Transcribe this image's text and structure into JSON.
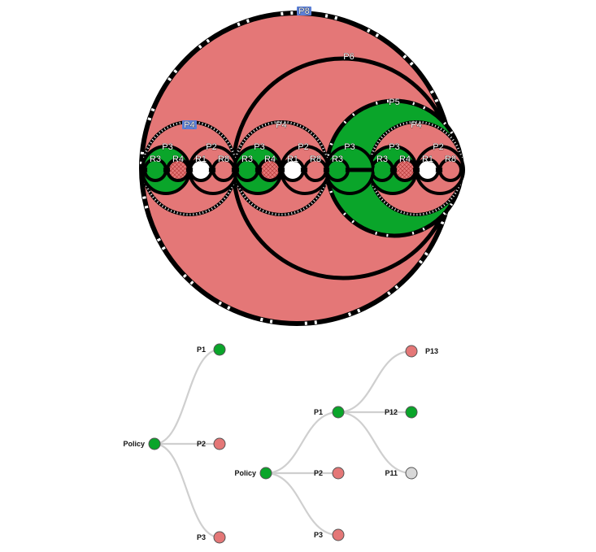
{
  "colors": {
    "green": "#0aa52a",
    "red": "#e47777",
    "white": "#ffffff",
    "gray": "#d8d8d8",
    "outline": "#000000",
    "highlight": "#5b7fd6",
    "edge": "#cfcfcf"
  },
  "circle_pack": {
    "outer": {
      "label": "P8",
      "fill": "red",
      "highlighted": true
    },
    "big": {
      "label": "P6",
      "fill": "red"
    },
    "groups": [
      {
        "label": "P4",
        "highlighted": true,
        "p3": "P3",
        "p2": "P2",
        "r": [
          {
            "label": "R3",
            "fill": "green"
          },
          {
            "label": "R4",
            "fill": "hatch"
          },
          {
            "label": "R1",
            "fill": "white"
          },
          {
            "label": "R8",
            "fill": "red"
          }
        ]
      },
      {
        "label": "P4",
        "highlighted": false,
        "p3": "P3",
        "p2": "P2",
        "r": [
          {
            "label": "R3",
            "fill": "green"
          },
          {
            "label": "R4",
            "fill": "hatch"
          },
          {
            "label": "R1",
            "fill": "white"
          },
          {
            "label": "R8",
            "fill": "red"
          }
        ]
      },
      {
        "label": "P4",
        "highlighted": false,
        "p3": "P3",
        "p2": "P2",
        "r": [
          {
            "label": "R3",
            "fill": "green"
          },
          {
            "label": "R4",
            "fill": "hatch"
          },
          {
            "label": "R1",
            "fill": "white"
          },
          {
            "label": "R8",
            "fill": "red"
          }
        ]
      }
    ],
    "p5": {
      "label": "P5",
      "fill": "green"
    },
    "p5_inner_p3": "P3",
    "p5_r3": {
      "label": "R3",
      "fill": "green"
    }
  },
  "tree_left": {
    "root": {
      "label": "Policy",
      "color": "green"
    },
    "children": [
      {
        "label": "P1",
        "color": "green"
      },
      {
        "label": "P2",
        "color": "red"
      },
      {
        "label": "P3",
        "color": "red"
      }
    ]
  },
  "tree_right": {
    "root": {
      "label": "Policy",
      "color": "green"
    },
    "children": [
      {
        "label": "P1",
        "color": "green",
        "children": [
          {
            "label": "P13",
            "color": "red"
          },
          {
            "label": "P12",
            "color": "green"
          },
          {
            "label": "P11",
            "color": "gray"
          }
        ]
      },
      {
        "label": "P2",
        "color": "red"
      },
      {
        "label": "P3",
        "color": "red"
      }
    ]
  }
}
